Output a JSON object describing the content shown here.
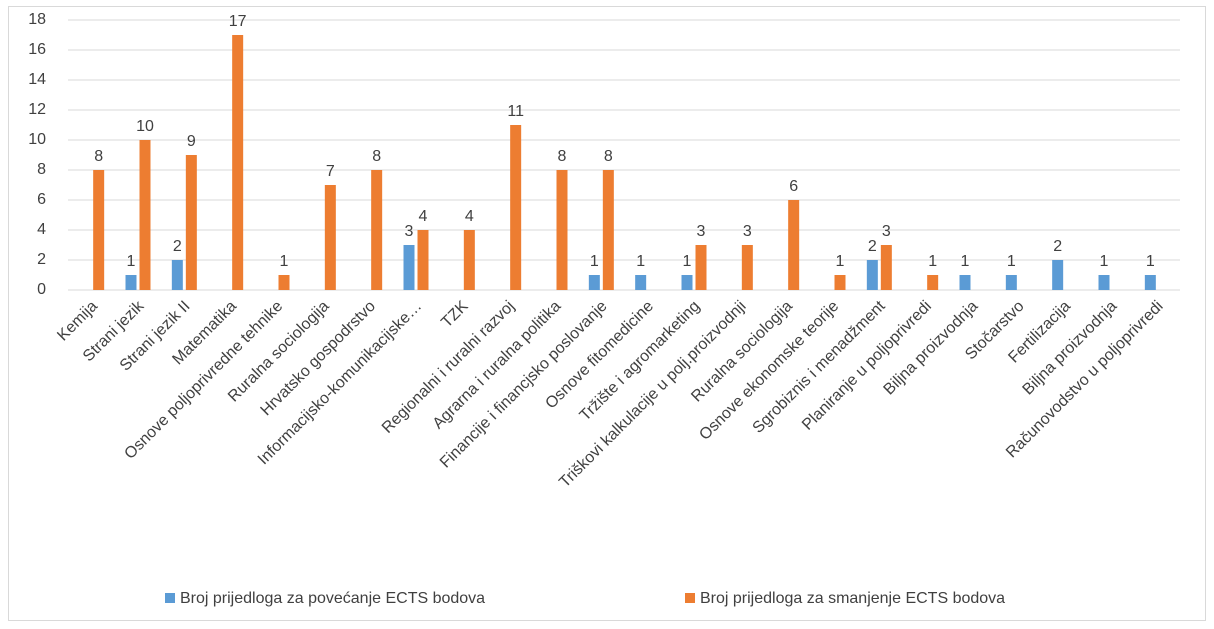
{
  "chart_data": {
    "type": "bar",
    "categories": [
      "Kemija",
      "Strani jezik",
      "Strani jezik II",
      "Matematika",
      "Osnove poljoprivredne tehnike",
      "Ruralna sociologija",
      "Hrvatsko gospodrstvo",
      "Informacijsko-komunikacijske…",
      "TZK",
      "Regionalni i ruralni razvoj",
      "Agrarna i ruralna politika",
      "Financije i financjsko poslovanje",
      "Osnove fitomedicine",
      "Tržište i agromarketing",
      "Triškovi kalkulacije u polj.proizvodnji",
      "Ruralna sociologija",
      "Osnove ekonomske teorije",
      "Sgrobiznis i menadžment",
      "Planiranje u poljoprivredi",
      "Biljna proizvodnja",
      "Stočarstvo",
      "Fertilizacija",
      "Biljna proizvodnja",
      "Računovodstvo u poljoprivredi"
    ],
    "series": [
      {
        "name": "Broj prijedloga za povećanje ECTS bodova",
        "color": "#5b9bd5",
        "values": [
          null,
          1,
          2,
          null,
          null,
          null,
          null,
          3,
          null,
          null,
          null,
          1,
          1,
          1,
          null,
          null,
          null,
          2,
          null,
          1,
          1,
          2,
          1,
          1
        ]
      },
      {
        "name": "Broj prijedloga za smanjenje ECTS bodova",
        "color": "#ed7d31",
        "values": [
          8,
          10,
          9,
          17,
          1,
          7,
          8,
          4,
          4,
          11,
          8,
          8,
          null,
          3,
          3,
          6,
          1,
          3,
          1,
          null,
          null,
          null,
          null,
          null
        ]
      }
    ],
    "ylim": [
      0,
      18
    ],
    "yticks": [
      0,
      2,
      4,
      6,
      8,
      10,
      12,
      14,
      16,
      18
    ],
    "grid": true,
    "legend": "bottom"
  }
}
